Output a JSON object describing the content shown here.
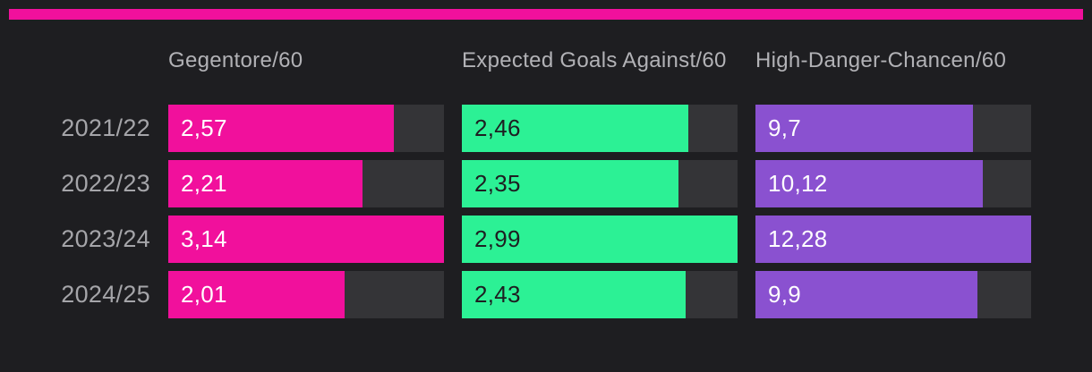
{
  "page": {
    "background_color": "#1e1e21",
    "accent_strip_color": "#f1109c",
    "track_color": "#343437",
    "header_text_color": "#b2b2b6",
    "row_label_text_color": "#a5a5a9"
  },
  "chart_data": {
    "type": "bar",
    "orientation": "horizontal",
    "title": "",
    "categories": [
      "2021/22",
      "2022/23",
      "2023/24",
      "2024/25"
    ],
    "series": [
      {
        "name": "Gegentore/60",
        "color": "#f1109c",
        "value_text_color": "#ffffff",
        "values": [
          2.57,
          2.21,
          3.14,
          2.01
        ],
        "display_values": [
          "2,57",
          "2,21",
          "3,14",
          "2,01"
        ]
      },
      {
        "name": "Expected Goals Against/60",
        "color": "#2cf195",
        "value_text_color": "#1e1e21",
        "values": [
          2.46,
          2.35,
          2.99,
          2.43
        ],
        "display_values": [
          "2,46",
          "2,35",
          "2,99",
          "2,43"
        ]
      },
      {
        "name": "High-Danger-Chancen/60",
        "color": "#8a51d0",
        "value_text_color": "#ffffff",
        "values": [
          9.7,
          10.12,
          12.28,
          9.9
        ],
        "display_values": [
          "9,7",
          "10,12",
          "12,28",
          "9,9"
        ]
      }
    ],
    "value_format": "decimal-comma",
    "scaling": "each column max value fills full track width",
    "grid": false,
    "legend_position": "column-headers-top"
  }
}
